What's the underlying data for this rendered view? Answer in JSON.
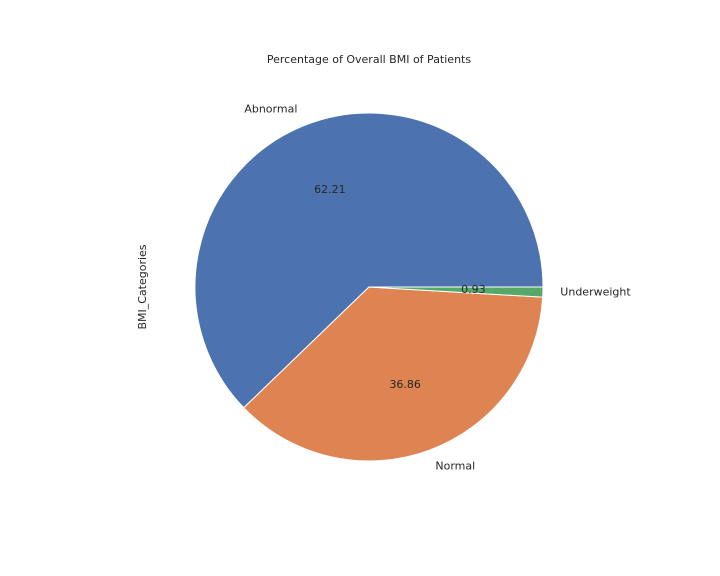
{
  "chart_data": {
    "type": "pie",
    "title": "Percentage of Overall BMI of Patients",
    "ylabel": "BMI_Categories",
    "categories": [
      "Abnormal",
      "Normal",
      "Underweight"
    ],
    "values": [
      62.21,
      36.86,
      0.93
    ],
    "value_labels": [
      "62.21",
      "36.86",
      "0.93"
    ],
    "colors": [
      "#4c72b0",
      "#dd8452",
      "#55a868"
    ],
    "start_angle_deg": 0,
    "direction": "counterclockwise",
    "wedge_edge_color": "#ffffff"
  }
}
